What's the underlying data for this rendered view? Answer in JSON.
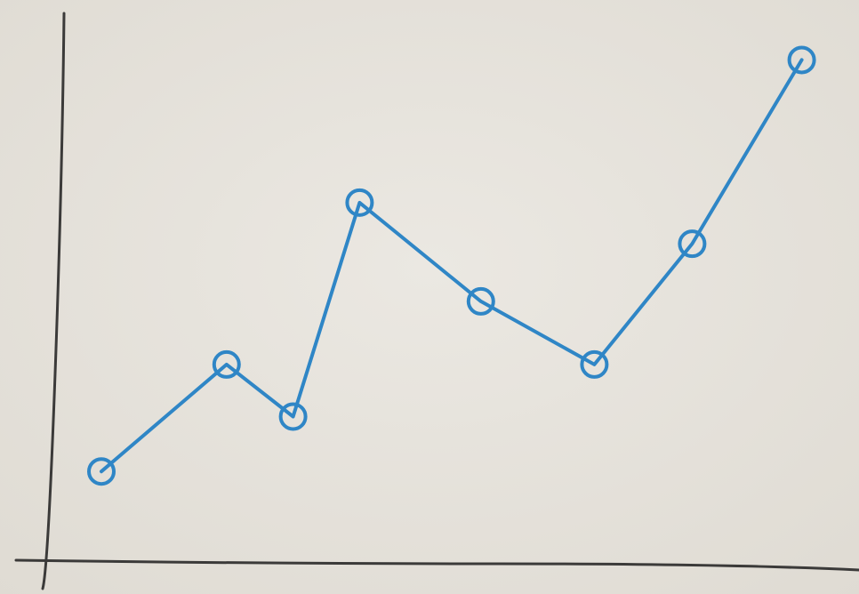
{
  "chart_data": {
    "type": "line",
    "x": [
      0.5,
      2.1,
      2.95,
      3.8,
      5.35,
      6.8,
      8.05,
      9.45
    ],
    "values": [
      1.65,
      3.6,
      2.65,
      6.55,
      4.75,
      3.6,
      5.8,
      9.15
    ],
    "color": "#2f86c6",
    "xlim": [
      0,
      10
    ],
    "ylim": [
      0,
      10
    ]
  }
}
